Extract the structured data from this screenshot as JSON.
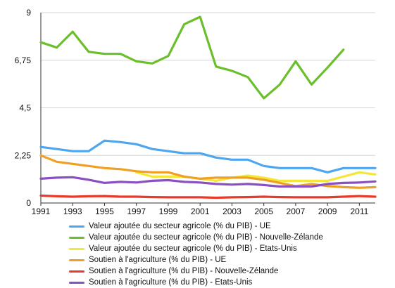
{
  "chart_data": {
    "type": "line",
    "x": [
      1991,
      1992,
      1993,
      1994,
      1995,
      1996,
      1997,
      1998,
      1999,
      2000,
      2001,
      2002,
      2003,
      2004,
      2005,
      2006,
      2007,
      2008,
      2009,
      2010,
      2011,
      2012
    ],
    "xticks": [
      "1991",
      "1993",
      "1995",
      "1997",
      "1999",
      "2001",
      "2003",
      "2005",
      "2007",
      "2009",
      "2011"
    ],
    "yticks": [
      "0",
      "2,25",
      "4,5",
      "6,75",
      "9"
    ],
    "ylim": [
      0,
      9
    ],
    "xlim": [
      1991,
      2012
    ],
    "grid": true,
    "legend_position": "bottom",
    "series": [
      {
        "name": "Valeur ajoutée du secteur agricole (% du PIB) - UE",
        "color": "#4da6f0",
        "values": [
          2.65,
          2.55,
          2.45,
          2.45,
          2.95,
          2.88,
          2.78,
          2.55,
          2.45,
          2.35,
          2.35,
          2.15,
          2.05,
          2.05,
          1.75,
          1.65,
          1.65,
          1.65,
          1.45,
          1.65,
          1.65,
          1.65
        ]
      },
      {
        "name": "Valeur ajoutée du secteur agricole (% du PIB) - Nouvelle-Zélande",
        "color": "#6bbf2a",
        "values": [
          7.6,
          7.35,
          8.1,
          7.15,
          7.05,
          7.05,
          6.7,
          6.6,
          6.95,
          8.45,
          8.8,
          6.45,
          6.25,
          5.95,
          4.95,
          5.6,
          6.7,
          5.6,
          6.4,
          7.25,
          null,
          null
        ]
      },
      {
        "name": "Valeur ajoutée du secteur agricole (% du PIB) - Etats-Unis",
        "color": "#f5e63a",
        "values": [
          null,
          null,
          null,
          null,
          null,
          null,
          1.45,
          1.25,
          1.25,
          1.25,
          1.15,
          1.05,
          1.2,
          1.3,
          1.2,
          1.05,
          1.05,
          1.05,
          1.05,
          1.25,
          1.45,
          1.35
        ]
      },
      {
        "name": "Soutien à l'agriculture (% du PIB) - UE",
        "color": "#f0a020",
        "values": [
          2.25,
          1.95,
          1.85,
          1.75,
          1.65,
          1.6,
          1.5,
          1.45,
          1.45,
          1.25,
          1.15,
          1.2,
          1.2,
          1.2,
          1.1,
          0.95,
          0.8,
          0.9,
          0.8,
          0.75,
          0.72,
          0.75
        ]
      },
      {
        "name": "Soutien à l'agriculture (% du PIB) - Nouvelle-Zélande",
        "color": "#e83a28",
        "values": [
          0.35,
          0.32,
          0.3,
          0.32,
          0.33,
          0.3,
          0.3,
          0.28,
          0.27,
          0.27,
          0.27,
          0.25,
          0.27,
          0.28,
          0.3,
          0.28,
          0.27,
          0.27,
          0.27,
          0.3,
          0.33,
          0.3
        ]
      },
      {
        "name": "Soutien à l'agriculture (% du PIB) - Etats-Unis",
        "color": "#8a4fc0",
        "values": [
          1.15,
          1.2,
          1.22,
          1.1,
          0.95,
          1.0,
          0.97,
          1.05,
          1.08,
          1.0,
          0.97,
          0.9,
          0.87,
          0.9,
          0.85,
          0.78,
          0.78,
          0.78,
          0.9,
          0.95,
          0.97,
          1.02
        ]
      }
    ]
  }
}
